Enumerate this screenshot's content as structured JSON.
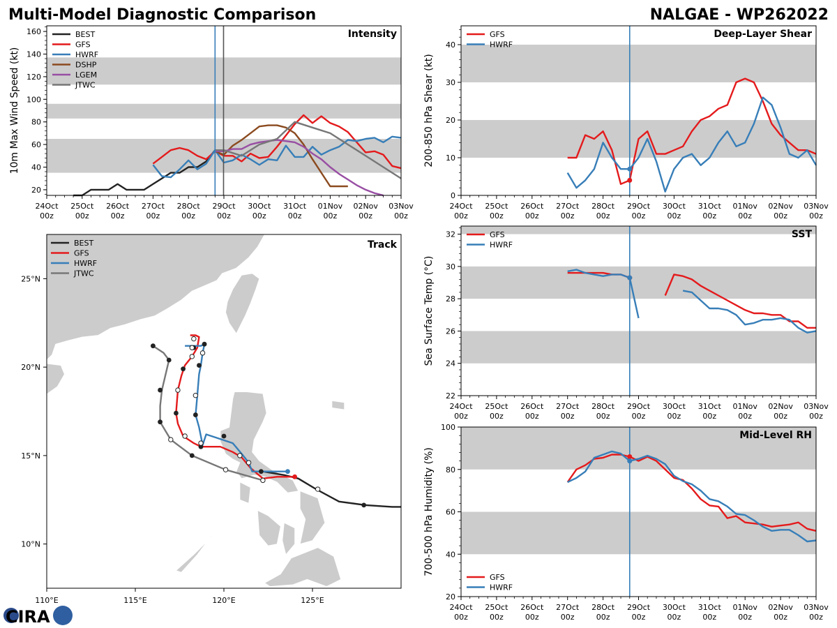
{
  "header": {
    "left_title": "Multi-Model Diagnostic Comparison",
    "right_title": "NALGAE - WP262022"
  },
  "logo": {
    "text": "CIRA"
  },
  "colors": {
    "BEST": "#222222",
    "GFS": "#e41a1c",
    "HWRF": "#377eb8",
    "DSHP": "#8b4a1e",
    "LGEM": "#984ea3",
    "JTWC": "#777777",
    "shade": "#cccccc",
    "land": "#cccccc",
    "marker": "#377eb8",
    "jtwc_marker": "#555555"
  },
  "time_axis": {
    "day_labels": [
      "24Oct",
      "25Oct",
      "26Oct",
      "27Oct",
      "28Oct",
      "29Oct",
      "30Oct",
      "31Oct",
      "01Nov",
      "02Nov",
      "03Nov"
    ],
    "hour_label": "00z",
    "current_day": 4.75,
    "jtwc_day": 4.99
  },
  "chart_data": [
    {
      "id": "intensity",
      "type": "line",
      "title": "Intensity",
      "ylabel": "10m Max Wind Speed (kt)",
      "xlim": [
        0,
        10
      ],
      "ylim": [
        15,
        165
      ],
      "yticks": [
        20,
        40,
        60,
        80,
        100,
        120,
        140,
        160
      ],
      "bands": [
        [
          35,
          65
        ],
        [
          83,
          96
        ],
        [
          113,
          137
        ]
      ],
      "legend": [
        "BEST",
        "GFS",
        "HWRF",
        "DSHP",
        "LGEM",
        "JTWC"
      ],
      "series": [
        {
          "name": "BEST",
          "x": [
            0.75,
            1,
            1.25,
            1.5,
            1.75,
            2,
            2.25,
            2.5,
            2.75,
            3,
            3.25,
            3.5,
            3.75,
            4,
            4.25,
            4.5,
            4.75
          ],
          "y": [
            15,
            15,
            20,
            20,
            20,
            25,
            20,
            20,
            20,
            25,
            30,
            35,
            35,
            40,
            40,
            45,
            55
          ]
        },
        {
          "name": "GFS",
          "x": [
            3,
            3.25,
            3.5,
            3.75,
            4,
            4.25,
            4.5,
            4.75,
            5,
            5.25,
            5.5,
            5.75,
            6,
            6.25,
            6.5,
            6.75,
            7,
            7.25,
            7.5,
            7.75,
            8,
            8.25,
            8.5,
            8.75,
            9,
            9.25,
            9.5,
            9.75,
            10
          ],
          "y": [
            43,
            49,
            55,
            57,
            55,
            50,
            47,
            54,
            50,
            50,
            45,
            52,
            48,
            49,
            58,
            68,
            78,
            86,
            79,
            85,
            79,
            76,
            71,
            62,
            53,
            54,
            51,
            41,
            39
          ]
        },
        {
          "name": "HWRF",
          "x": [
            3,
            3.25,
            3.5,
            3.75,
            4,
            4.25,
            4.5,
            4.75,
            5,
            5.25,
            5.5,
            5.75,
            6,
            6.25,
            6.5,
            6.75,
            7,
            7.25,
            7.5,
            7.75,
            8,
            8.25,
            8.5,
            8.75,
            9,
            9.25,
            9.5,
            9.75,
            10
          ],
          "y": [
            42,
            32,
            31,
            38,
            46,
            38,
            43,
            55,
            44,
            46,
            51,
            47,
            42,
            47,
            46,
            59,
            49,
            49,
            58,
            51,
            55,
            58,
            64,
            63,
            65,
            66,
            62,
            67,
            66
          ]
        },
        {
          "name": "DSHP",
          "x": [
            4.75,
            5,
            5.25,
            5.5,
            5.75,
            6,
            6.25,
            6.5,
            6.75,
            7,
            7.25,
            7.5,
            7.75,
            8,
            8.25,
            8.5
          ],
          "y": [
            54,
            51,
            59,
            64,
            70,
            76,
            77,
            77,
            75,
            70,
            60,
            47,
            35,
            23,
            23,
            23
          ]
        },
        {
          "name": "LGEM",
          "x": [
            4.75,
            5,
            5.25,
            5.5,
            5.75,
            6,
            6.25,
            6.5,
            6.75,
            7,
            7.25,
            7.5,
            7.75,
            8,
            8.25,
            8.5,
            8.75,
            9,
            9.25,
            9.5
          ],
          "y": [
            54,
            54,
            56,
            56,
            60,
            62,
            63,
            64,
            63,
            62,
            58,
            52,
            47,
            40,
            34,
            29,
            24,
            20,
            17,
            15
          ]
        },
        {
          "name": "JTWC",
          "x": [
            4.75,
            5,
            5.5,
            6,
            6.5,
            7,
            7.5,
            8,
            8.5,
            9,
            9.5,
            10
          ],
          "y": [
            55,
            55,
            50,
            60,
            65,
            80,
            75,
            70,
            60,
            50,
            40,
            30
          ]
        }
      ]
    },
    {
      "id": "shear",
      "type": "line",
      "title": "Deep-Layer Shear",
      "ylabel": "200-850 hPa Shear (kt)",
      "xlim": [
        0,
        10
      ],
      "ylim": [
        0,
        45
      ],
      "yticks": [
        0,
        10,
        20,
        30,
        40
      ],
      "bands": [
        [
          10,
          20
        ],
        [
          30,
          40
        ]
      ],
      "legend": [
        "GFS",
        "HWRF"
      ],
      "series": [
        {
          "name": "GFS",
          "x": [
            3,
            3.25,
            3.5,
            3.75,
            4,
            4.25,
            4.5,
            4.75,
            5,
            5.25,
            5.5,
            5.75,
            6,
            6.25,
            6.5,
            6.75,
            7,
            7.25,
            7.5,
            7.75,
            8,
            8.25,
            8.5,
            8.75,
            9,
            9.25,
            9.5,
            9.75,
            10
          ],
          "y": [
            10,
            10,
            16,
            15,
            17,
            12,
            3,
            4,
            15,
            17,
            11,
            11,
            12,
            13,
            17,
            20,
            21,
            23,
            24,
            30,
            31,
            30,
            25,
            19,
            16,
            14,
            12,
            12,
            11
          ]
        },
        {
          "name": "HWRF",
          "x": [
            3,
            3.25,
            3.5,
            3.75,
            4,
            4.25,
            4.5,
            4.75,
            5,
            5.25,
            5.5,
            5.75,
            6,
            6.25,
            6.5,
            6.75,
            7,
            7.25,
            7.5,
            7.75,
            8,
            8.25,
            8.5,
            8.75,
            9,
            9.25,
            9.5,
            9.75,
            10
          ],
          "y": [
            6,
            2,
            4,
            7,
            14,
            10,
            7,
            7,
            10,
            15,
            9,
            1,
            7,
            10,
            11,
            8,
            10,
            14,
            17,
            13,
            14,
            19,
            26,
            24,
            18,
            11,
            10,
            12,
            8
          ]
        }
      ]
    },
    {
      "id": "sst",
      "type": "line",
      "title": "SST",
      "ylabel": "Sea Surface Temp (°C)",
      "xlim": [
        0,
        10
      ],
      "ylim": [
        22,
        32.5
      ],
      "yticks": [
        22,
        24,
        26,
        28,
        30,
        32
      ],
      "bands": [
        [
          24,
          26
        ],
        [
          28,
          30
        ],
        [
          32,
          32.5
        ]
      ],
      "legend": [
        "GFS",
        "HWRF"
      ],
      "series": [
        {
          "name": "GFS",
          "x": [
            3,
            3.25,
            3.5,
            3.75,
            4,
            4.25,
            4.5,
            4.75
          ],
          "y": [
            29.6,
            29.6,
            29.6,
            29.6,
            29.6,
            29.5,
            29.5,
            29.3
          ]
        },
        {
          "name": "GFS",
          "x": [
            5.75,
            6,
            6.25,
            6.5,
            6.75,
            7,
            7.25,
            7.5,
            7.75,
            8,
            8.25,
            8.5,
            8.75,
            9,
            9.25,
            9.5,
            9.75,
            10
          ],
          "y": [
            28.2,
            29.5,
            29.4,
            29.2,
            28.8,
            28.5,
            28.2,
            27.9,
            27.6,
            27.3,
            27.1,
            27.1,
            27.0,
            27.0,
            26.6,
            26.6,
            26.2,
            26.2
          ]
        },
        {
          "name": "HWRF",
          "x": [
            3,
            3.25,
            3.5,
            3.75,
            4,
            4.25,
            4.5,
            4.75,
            5
          ],
          "y": [
            29.7,
            29.8,
            29.6,
            29.5,
            29.4,
            29.5,
            29.5,
            29.3,
            26.8
          ]
        },
        {
          "name": "HWRF",
          "x": [
            6.25,
            6.5,
            6.75,
            7,
            7.25,
            7.5,
            7.75,
            8,
            8.25,
            8.5,
            8.75,
            9,
            9.25,
            9.5,
            9.75,
            10
          ],
          "y": [
            28.5,
            28.4,
            27.9,
            27.4,
            27.4,
            27.3,
            27.0,
            26.4,
            26.5,
            26.7,
            26.7,
            26.8,
            26.7,
            26.2,
            25.9,
            26.0
          ]
        }
      ]
    },
    {
      "id": "rh",
      "type": "line",
      "title": "Mid-Level RH",
      "ylabel": "700-500 hPa Humidity (%)",
      "xlim": [
        0,
        10
      ],
      "ylim": [
        20,
        100
      ],
      "yticks": [
        20,
        40,
        60,
        80,
        100
      ],
      "bands": [
        [
          40,
          60
        ],
        [
          80,
          100
        ]
      ],
      "legend": [
        "GFS",
        "HWRF"
      ],
      "series": [
        {
          "name": "GFS",
          "x": [
            3,
            3.25,
            3.5,
            3.75,
            4,
            4.25,
            4.5,
            4.75,
            5,
            5.25,
            5.5,
            5.75,
            6,
            6.25,
            6.5,
            6.75,
            7,
            7.25,
            7.5,
            7.75,
            8,
            8.25,
            8.5,
            8.75,
            9,
            9.25,
            9.5,
            9.75,
            10
          ],
          "y": [
            74,
            80,
            82,
            85,
            85.5,
            87,
            87,
            86,
            84,
            86,
            84,
            80,
            76,
            75,
            71,
            66,
            63,
            62.5,
            57,
            58,
            55,
            54.5,
            54,
            53,
            53.5,
            54,
            55,
            52,
            51
          ]
        },
        {
          "name": "HWRF",
          "x": [
            3,
            3.25,
            3.5,
            3.75,
            4,
            4.25,
            4.5,
            4.75,
            5,
            5.25,
            5.5,
            5.75,
            6,
            6.25,
            6.5,
            6.75,
            7,
            7.25,
            7.5,
            7.75,
            8,
            8.25,
            8.5,
            8.75,
            9,
            9.25,
            9.5,
            9.75,
            10
          ],
          "y": [
            74,
            76,
            79,
            85.5,
            87,
            88.5,
            87.5,
            84,
            85,
            86.5,
            85,
            82.5,
            77,
            74.5,
            73,
            70,
            66,
            65,
            62.5,
            59,
            58.5,
            56,
            53,
            51,
            51.5,
            51.5,
            49,
            46,
            46.5
          ]
        }
      ]
    },
    {
      "id": "track",
      "type": "scatter",
      "title": "Track",
      "xlim": [
        110,
        130
      ],
      "ylim": [
        7.5,
        27.5
      ],
      "xticks": [
        110,
        115,
        120,
        125
      ],
      "xtick_labels": [
        "110°E",
        "115°E",
        "120°E",
        "125°E"
      ],
      "yticks": [
        10,
        15,
        20,
        25
      ],
      "ytick_labels": [
        "10°N",
        "15°N",
        "20°N",
        "25°N"
      ],
      "legend": [
        "BEST",
        "GFS",
        "HWRF",
        "JTWC"
      ],
      "series": [
        {
          "name": "BEST",
          "lon": [
            130,
            129.5,
            128,
            126.5,
            125.2,
            124.2,
            123.4,
            122.8,
            122.2,
            122.0
          ],
          "lat": [
            12.1,
            12.1,
            12.2,
            12.4,
            13.1,
            13.7,
            13.9,
            14.0,
            14.1,
            14.1
          ]
        },
        {
          "name": "GFS",
          "lon": [
            124.1,
            123,
            122.2,
            121.5,
            121,
            120.5,
            119.8,
            118.7,
            118.3,
            117.7,
            117.4,
            117.3,
            117.4,
            117.6,
            117.8,
            118.2,
            118.5,
            118.6,
            118.4,
            118.1
          ],
          "lat": [
            13.8,
            13.8,
            13.7,
            14.3,
            14.9,
            15.2,
            15.5,
            15.5,
            15.7,
            16.1,
            16.8,
            17.4,
            18.7,
            19.5,
            20.1,
            20.6,
            21.1,
            21.7,
            21.8,
            21.8
          ]
        },
        {
          "name": "HWRF",
          "lon": [
            123.6,
            122.5,
            121.6,
            121.4,
            121,
            120.5,
            119.6,
            119,
            118.8,
            118.6,
            118.4,
            118.5,
            118.6,
            118.7,
            118.8,
            118.9,
            118.7,
            118.5,
            118.2,
            117.8
          ],
          "lat": [
            14.1,
            14.1,
            14.1,
            14.6,
            15.1,
            15.7,
            16.0,
            16.2,
            15.6,
            16.6,
            17.3,
            18.4,
            19.6,
            20.1,
            20.8,
            21.3,
            21.2,
            21.2,
            21.2,
            21.2
          ]
        },
        {
          "name": "JTWC",
          "lon": [
            122.2,
            120.1,
            118.2,
            117.0,
            116.4,
            116.4,
            116.5,
            116.9,
            116.6,
            116.0
          ],
          "lat": [
            13.6,
            14.2,
            15.0,
            15.9,
            16.9,
            17.8,
            18.7,
            20.4,
            20.8,
            21.2
          ]
        }
      ],
      "filled_markers": [
        {
          "lon": 127.9,
          "lat": 12.2,
          "c": "BEST"
        },
        {
          "lon": 122.1,
          "lat": 14.1,
          "c": "BEST"
        },
        {
          "lon": 124.0,
          "lat": 13.8,
          "c": "GFS"
        },
        {
          "lon": 123.6,
          "lat": 14.1,
          "c": "HWRF"
        },
        {
          "lon": 120.0,
          "lat": 16.1,
          "c": "BEST"
        },
        {
          "lon": 118.7,
          "lat": 15.5,
          "c": "BEST"
        },
        {
          "lon": 118.4,
          "lat": 17.3,
          "c": "BEST"
        },
        {
          "lon": 117.7,
          "lat": 19.9,
          "c": "BEST"
        },
        {
          "lon": 117.3,
          "lat": 17.4,
          "c": "BEST"
        },
        {
          "lon": 118.6,
          "lat": 20.1,
          "c": "BEST"
        },
        {
          "lon": 118.3,
          "lat": 21.1,
          "c": "BEST"
        },
        {
          "lon": 118.9,
          "lat": 21.3,
          "c": "BEST"
        },
        {
          "lon": 118.2,
          "lat": 15.0,
          "c": "BEST"
        },
        {
          "lon": 116.4,
          "lat": 16.9,
          "c": "BEST"
        },
        {
          "lon": 116.4,
          "lat": 18.7,
          "c": "BEST"
        },
        {
          "lon": 116.9,
          "lat": 20.4,
          "c": "BEST"
        },
        {
          "lon": 116.0,
          "lat": 21.2,
          "c": "BEST"
        }
      ],
      "open_markers": [
        {
          "lon": 125.3,
          "lat": 13.1
        },
        {
          "lon": 122.2,
          "lat": 13.6
        },
        {
          "lon": 120.1,
          "lat": 14.2
        },
        {
          "lon": 121.4,
          "lat": 14.6
        },
        {
          "lon": 120.9,
          "lat": 15.0
        },
        {
          "lon": 118.7,
          "lat": 15.7
        },
        {
          "lon": 117.8,
          "lat": 16.1
        },
        {
          "lon": 117.4,
          "lat": 18.7
        },
        {
          "lon": 118.4,
          "lat": 18.4
        },
        {
          "lon": 118.8,
          "lat": 20.8
        },
        {
          "lon": 118.2,
          "lat": 20.6
        },
        {
          "lon": 118.3,
          "lat": 21.6
        },
        {
          "lon": 118.2,
          "lat": 21.1
        },
        {
          "lon": 117.0,
          "lat": 15.9
        }
      ]
    }
  ]
}
